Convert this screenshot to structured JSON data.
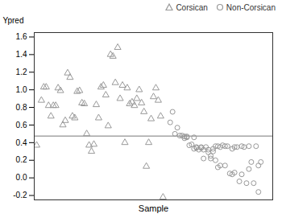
{
  "chart_data": {
    "type": "scatter",
    "xlabel": "Sample",
    "ylabel": "Ypred",
    "series": [
      {
        "name": "Corsican",
        "color": "#999999",
        "marker": "triangle",
        "x": [
          1,
          3,
          4,
          5,
          6,
          7,
          8,
          9,
          10,
          11,
          12,
          13,
          14,
          15,
          16,
          17,
          18,
          19,
          20,
          21,
          22,
          23,
          24,
          25,
          26,
          27,
          28,
          29,
          30,
          31,
          32,
          33,
          34,
          35,
          36,
          37,
          38,
          39,
          40,
          41,
          42,
          43,
          44,
          45,
          46,
          47,
          48,
          49,
          50,
          51,
          52,
          53,
          54
        ],
        "values": [
          0.37,
          0.88,
          1.03,
          1.03,
          0.82,
          0.7,
          0.82,
          0.82,
          1.02,
          0.99,
          0.6,
          0.65,
          1.19,
          1.14,
          0.7,
          0.68,
          0.98,
          0.99,
          0.85,
          0.84,
          0.5,
          0.37,
          0.3,
          0.38,
          0.83,
          0.68,
          1.03,
          1.05,
          0.94,
          0.59,
          1.4,
          1.38,
          1.08,
          1.48,
          0.9,
          1.05,
          0.4,
          1.02,
          0.84,
          0.86,
          0.82,
          0.9,
          1.0,
          0.85,
          0.75,
          0.13,
          0.4,
          0.67,
          0.92,
          1.02,
          0.88,
          0.7,
          -0.22
        ]
      },
      {
        "name": "Non-Corsican",
        "color": "#999999",
        "marker": "circle",
        "x": [
          57,
          58,
          59,
          60,
          61,
          62,
          63,
          63,
          64,
          64,
          65,
          66,
          67,
          67,
          68,
          68,
          69,
          70,
          70,
          71,
          71,
          72,
          73,
          73,
          74,
          74,
          75,
          75,
          76,
          76,
          77,
          77,
          78,
          78,
          79,
          80,
          80,
          81,
          82,
          83,
          83,
          84,
          84,
          85,
          86,
          87,
          87,
          88,
          89,
          90,
          90,
          91,
          92,
          93,
          94,
          94,
          95
        ],
        "values": [
          0.63,
          0.75,
          0.5,
          0.57,
          0.48,
          0.48,
          0.47,
          0.45,
          0.47,
          0.46,
          0.37,
          0.38,
          0.46,
          0.33,
          0.35,
          0.34,
          0.32,
          0.35,
          0.34,
          0.32,
          0.22,
          0.35,
          0.32,
          0.29,
          0.25,
          0.22,
          0.33,
          0.3,
          0.36,
          0.2,
          0.36,
          0.12,
          0.35,
          0.14,
          0.37,
          0.36,
          0.14,
          0.36,
          0.05,
          0.33,
          0.04,
          0.35,
          0.06,
          0.35,
          -0.04,
          0.36,
          0.04,
          0.35,
          -0.06,
          0.36,
          0.1,
          0.18,
          -0.06,
          0.36,
          0.14,
          -0.16,
          0.18
        ]
      }
    ],
    "hline": {
      "y": 0.475,
      "color": "#777777"
    },
    "xlim": [
      0,
      100
    ],
    "ylim": [
      -0.25,
      1.65
    ],
    "yticks": [
      -0.2,
      {
        "value": 0.0,
        "label": "0.0"
      },
      0.2,
      0.4,
      0.6,
      0.8,
      {
        "value": 1.0,
        "label": "1.0"
      },
      1.2,
      1.4,
      1.6
    ],
    "tick_labels": "y",
    "legend": "upper right"
  }
}
